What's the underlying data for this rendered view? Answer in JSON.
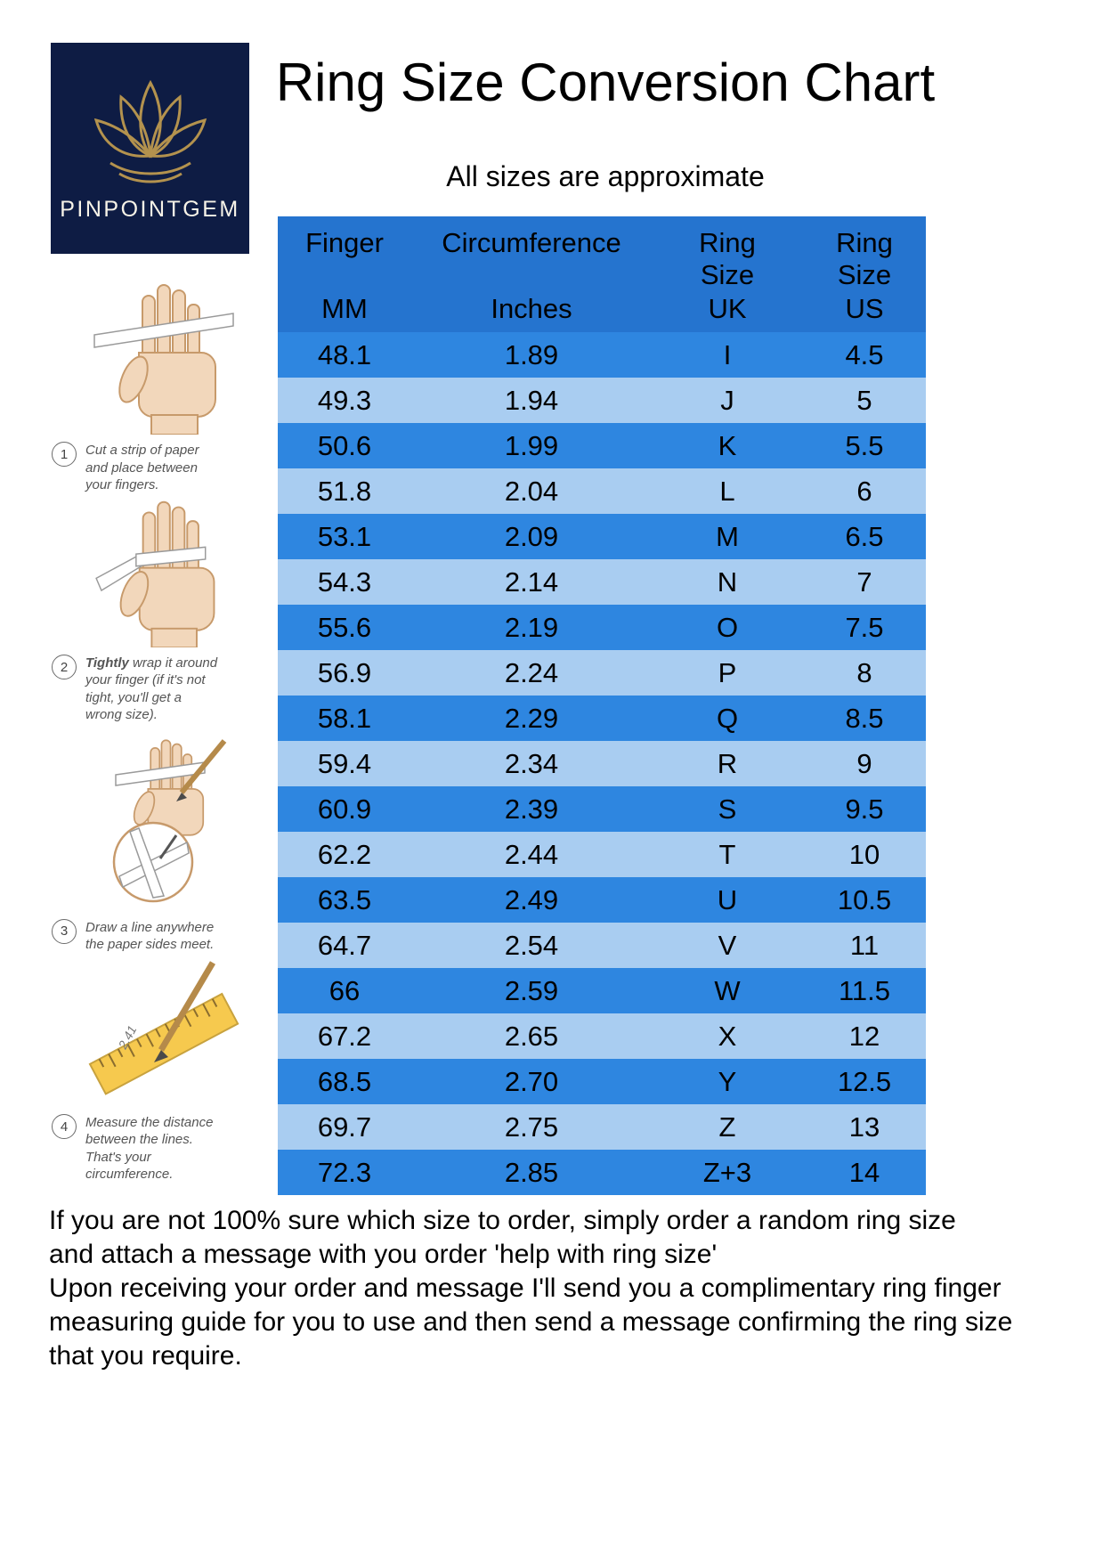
{
  "page": {
    "title": "Ring Size Conversion Chart",
    "subtitle": "All sizes are approximate"
  },
  "logo": {
    "brand": "PINPOINTGEM",
    "icon": "lotus-icon"
  },
  "steps": [
    {
      "num": "1",
      "bold": "",
      "text": "Cut a strip of paper and place between your fingers."
    },
    {
      "num": "2",
      "bold": "Tightly",
      "text": " wrap it around your finger (if it's not tight, you'll get a wrong size)."
    },
    {
      "num": "3",
      "bold": "",
      "text": "Draw a line anywhere the paper sides meet."
    },
    {
      "num": "4",
      "bold": "",
      "text": "Measure the distance between the lines. That's your circumference."
    }
  ],
  "chart_data": {
    "type": "table",
    "title": "Ring Size Conversion Chart",
    "subtitle": "All sizes are approximate",
    "columns": [
      {
        "top": "Finger",
        "bottom": "MM"
      },
      {
        "top": "Circumference",
        "bottom": "Inches"
      },
      {
        "top": "Ring Size",
        "bottom": "UK"
      },
      {
        "top": "Ring Size",
        "bottom": "US"
      }
    ],
    "rows": [
      [
        "48.1",
        "1.89",
        "I",
        "4.5"
      ],
      [
        "49.3",
        "1.94",
        "J",
        "5"
      ],
      [
        "50.6",
        "1.99",
        "K",
        "5.5"
      ],
      [
        "51.8",
        "2.04",
        "L",
        "6"
      ],
      [
        "53.1",
        "2.09",
        "M",
        "6.5"
      ],
      [
        "54.3",
        "2.14",
        "N",
        "7"
      ],
      [
        "55.6",
        "2.19",
        "O",
        "7.5"
      ],
      [
        "56.9",
        "2.24",
        "P",
        "8"
      ],
      [
        "58.1",
        "2.29",
        "Q",
        "8.5"
      ],
      [
        "59.4",
        "2.34",
        "R",
        "9"
      ],
      [
        "60.9",
        "2.39",
        "S",
        "9.5"
      ],
      [
        "62.2",
        "2.44",
        "T",
        "10"
      ],
      [
        "63.5",
        "2.49",
        "U",
        "10.5"
      ],
      [
        "64.7",
        "2.54",
        "V",
        "11"
      ],
      [
        "66",
        "2.59",
        "W",
        "11.5"
      ],
      [
        "67.2",
        "2.65",
        "X",
        "12"
      ],
      [
        "68.5",
        "2.70",
        "Y",
        "12.5"
      ],
      [
        "69.7",
        "2.75",
        "Z",
        "13"
      ],
      [
        "72.3",
        "2.85",
        "Z+3",
        "14"
      ]
    ]
  },
  "footer": {
    "lines": [
      "If you are not 100% sure which size to order, simply order a random ring size",
      "and attach a message with you order 'help with ring size'",
      "Upon receiving your order and message I'll send you a complimentary ring finger",
      "measuring guide for you to use and then send a message confirming the ring size",
      "that you require."
    ]
  },
  "colors": {
    "header_blue": "#2574cf",
    "row_dark": "#2e86e0",
    "row_light": "#a9cdf1",
    "logo_bg": "#0e1c44",
    "logo_gold": "#b3924e"
  }
}
